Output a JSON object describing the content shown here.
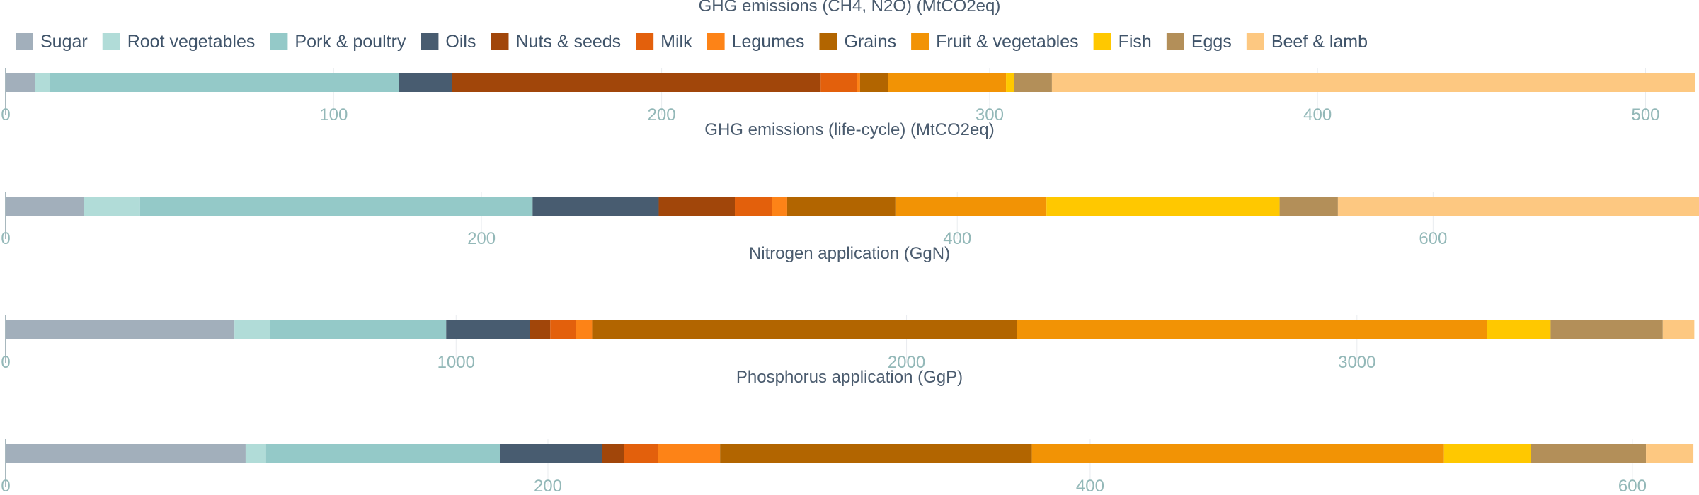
{
  "chart_data": {
    "type": "bar",
    "orientation": "horizontal",
    "stacked": true,
    "legend_position": "top",
    "grid": true,
    "categories": [
      "Sugar",
      "Root vegetables",
      "Pork & poultry",
      "Oils",
      "Nuts & seeds",
      "Milk",
      "Legumes",
      "Grains",
      "Fruit & vegetables",
      "Fish",
      "Eggs",
      "Beef & lamb"
    ],
    "colors": [
      "#a2afbb",
      "#b1dcd8",
      "#94c9c8",
      "#485c70",
      "#a1460a",
      "#e3600c",
      "#fd8317",
      "#b26500",
      "#f29305",
      "#ffc800",
      "#b38f59",
      "#fdc881"
    ],
    "panels": [
      {
        "title": "GHG emissions (CH4, N2O) (MtCO2eq)",
        "xlim": [
          0,
          515
        ],
        "ticks": [
          0,
          100,
          200,
          300,
          400,
          500
        ],
        "values": [
          9,
          4.5,
          106.5,
          16,
          112.5,
          11,
          1,
          8.5,
          36,
          2.5,
          11.5,
          196
        ]
      },
      {
        "title": "GHG emissions (life-cycle) (MtCO2eq)",
        "xlim": [
          0,
          710
        ],
        "ticks": [
          0,
          200,
          400,
          600
        ],
        "values": [
          33,
          23.5,
          165,
          53,
          32,
          15.5,
          6.5,
          45.5,
          63.5,
          98,
          24.5,
          238
        ]
      },
      {
        "title": "Nitrogen application (GgN)",
        "xlim": [
          0,
          3750
        ],
        "ticks": [
          0,
          1000,
          2000,
          3000
        ],
        "values": [
          508,
          79,
          391,
          186,
          45,
          57,
          36,
          943,
          1043,
          142,
          249,
          70
        ]
      },
      {
        "title": "Phosphorus application (GgP)",
        "xlim": [
          0,
          623
        ],
        "ticks": [
          0,
          200,
          400,
          600
        ],
        "values": [
          88.5,
          7.5,
          86.5,
          37.5,
          8,
          12.5,
          23,
          115,
          152,
          32,
          42.5,
          17.5
        ]
      }
    ]
  }
}
